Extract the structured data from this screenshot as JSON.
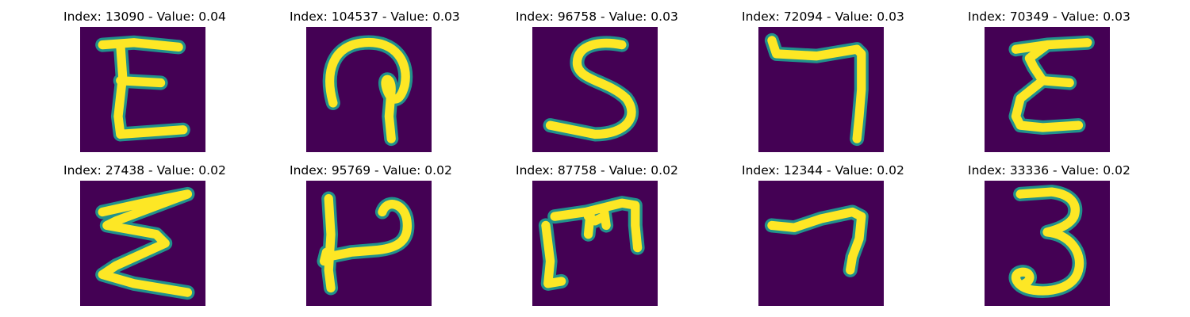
{
  "colors": {
    "background": "#440154",
    "stroke_outer": "#21918c",
    "stroke_inner": "#fde725"
  },
  "panels": [
    {
      "title": "Index: 13090 - Value: 0.04",
      "glyph": "handwritten-E-icon"
    },
    {
      "title": "Index: 104537 - Value: 0.03",
      "glyph": "handwritten-looped-stroke-icon"
    },
    {
      "title": "Index: 96758 - Value: 0.03",
      "glyph": "handwritten-S-icon"
    },
    {
      "title": "Index: 72094 - Value: 0.03",
      "glyph": "handwritten-7-icon"
    },
    {
      "title": "Index: 70349 - Value: 0.03",
      "glyph": "handwritten-E-icon"
    },
    {
      "title": "Index: 27438 - Value: 0.02",
      "glyph": "handwritten-sigma-icon"
    },
    {
      "title": "Index: 95769 - Value: 0.02",
      "glyph": "handwritten-P-icon"
    },
    {
      "title": "Index: 87758 - Value: 0.02",
      "glyph": "handwritten-m-icon"
    },
    {
      "title": "Index: 12344 - Value: 0.02",
      "glyph": "handwritten-7-icon"
    },
    {
      "title": "Index: 33336 - Value: 0.02",
      "glyph": "handwritten-3-icon"
    }
  ]
}
